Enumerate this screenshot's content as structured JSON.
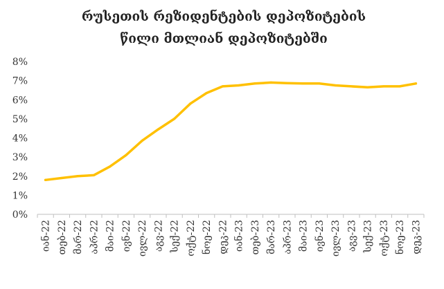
{
  "chart_data": {
    "type": "line",
    "title_lines": [
      "რუსეთის რეზიდენტების დეპოზიტების",
      "წილი მთლიან დეპოზიტებში"
    ],
    "xlabel": "",
    "ylabel": "",
    "x": [
      "იან-22",
      "თებ-22",
      "მარ-22",
      "აპრ-22",
      "მაი-22",
      "ივნ-22",
      "ივლ-22",
      "აგვ-22",
      "სექ-22",
      "ოქტ-22",
      "ნოე-22",
      "დეკ-22",
      "იან-23",
      "თებ-23",
      "მარ-23",
      "აპრ-23",
      "მაი-23",
      "ივნ-23",
      "ივლ-23",
      "აგვ-23",
      "სექ-23",
      "ოქტ-23",
      "ნოე-23",
      "დეკ-23"
    ],
    "series": [
      {
        "values": [
          1.8,
          1.9,
          2.0,
          2.05,
          2.5,
          3.1,
          3.85,
          4.45,
          5.0,
          5.8,
          6.35,
          6.7,
          6.75,
          6.85,
          6.9,
          6.87,
          6.85,
          6.85,
          6.75,
          6.7,
          6.65,
          6.7,
          6.7,
          6.85
        ],
        "color": "#FFC000"
      }
    ],
    "ylim": [
      0,
      8
    ],
    "yticks": [
      "0%",
      "1%",
      "2%",
      "3%",
      "4%",
      "5%",
      "6%",
      "7%",
      "8%"
    ],
    "grid": false,
    "legend": "none"
  }
}
